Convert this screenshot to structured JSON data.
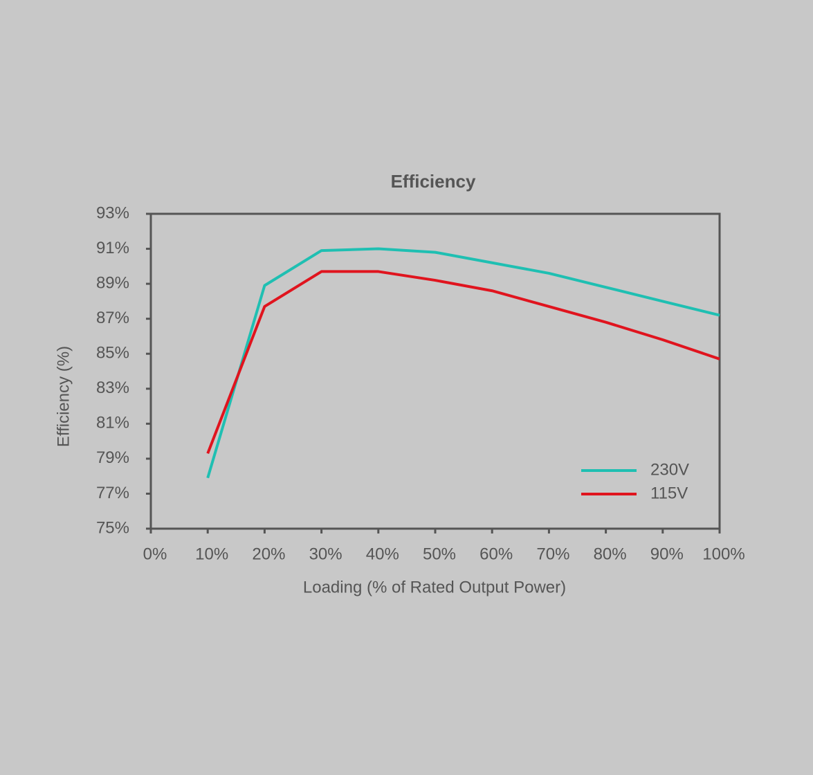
{
  "chart_data": {
    "type": "line",
    "title": "Efficiency",
    "x_label": "Loading (% of Rated Output Power)",
    "y_label": "Efficiency (%)",
    "x": [
      10,
      20,
      30,
      40,
      50,
      60,
      70,
      80,
      90,
      100
    ],
    "series": [
      {
        "name": "230V",
        "color": "#1fbfb2",
        "values": [
          77.9,
          88.9,
          90.9,
          91.0,
          90.8,
          90.2,
          89.6,
          88.8,
          88.0,
          87.2
        ]
      },
      {
        "name": "115V",
        "color": "#e0141e",
        "values": [
          79.3,
          87.7,
          89.7,
          89.7,
          89.2,
          88.6,
          87.7,
          86.8,
          85.8,
          84.7
        ]
      }
    ],
    "xlim": [
      0,
      100
    ],
    "xticks": [
      {
        "value": 0,
        "label": "0%"
      },
      {
        "value": 10,
        "label": "10%"
      },
      {
        "value": 20,
        "label": "20%"
      },
      {
        "value": 30,
        "label": "30%"
      },
      {
        "value": 40,
        "label": "40%"
      },
      {
        "value": 50,
        "label": "50%"
      },
      {
        "value": 60,
        "label": "60%"
      },
      {
        "value": 70,
        "label": "70%"
      },
      {
        "value": 80,
        "label": "80%"
      },
      {
        "value": 90,
        "label": "90%"
      },
      {
        "value": 100,
        "label": "100%"
      }
    ],
    "ylim": [
      75,
      93
    ],
    "yticks": [
      {
        "value": 75,
        "label": "75%"
      },
      {
        "value": 77,
        "label": "77%"
      },
      {
        "value": 79,
        "label": "79%"
      },
      {
        "value": 81,
        "label": "81%"
      },
      {
        "value": 83,
        "label": "83%"
      },
      {
        "value": 85,
        "label": "85%"
      },
      {
        "value": 87,
        "label": "87%"
      },
      {
        "value": 89,
        "label": "89%"
      },
      {
        "value": 91,
        "label": "91%"
      },
      {
        "value": 93,
        "label": "93%"
      }
    ],
    "grid": false,
    "legend": "lower right"
  }
}
